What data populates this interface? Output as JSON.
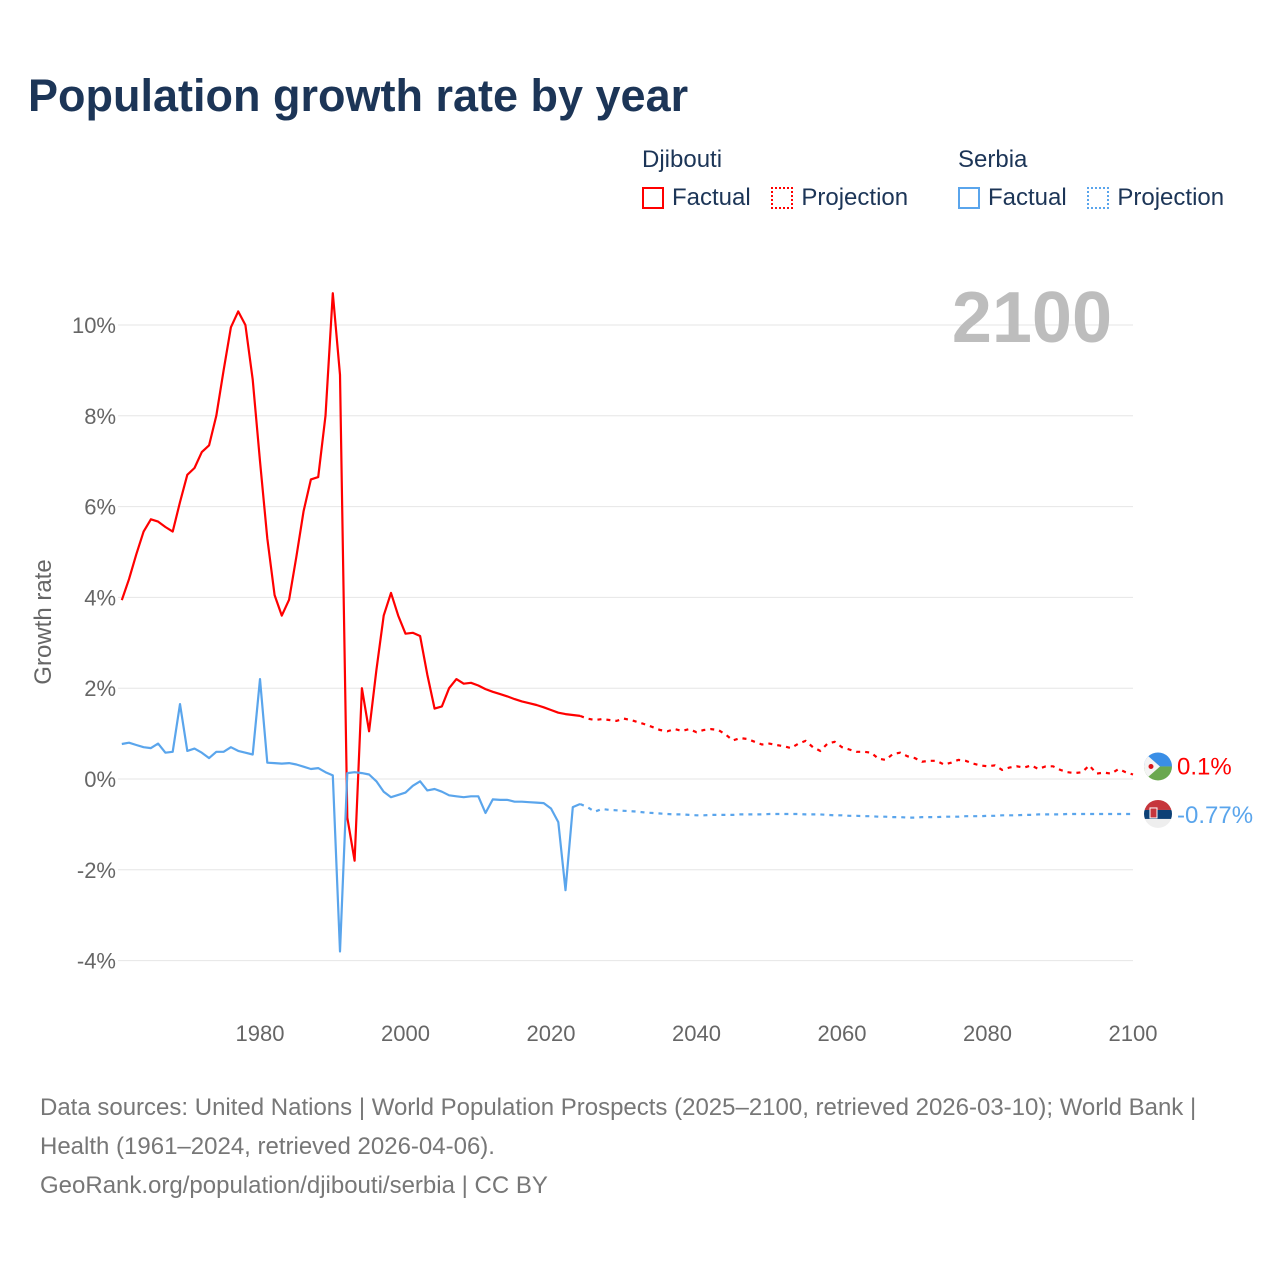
{
  "title": "Population growth rate by year",
  "legend": {
    "groups": [
      {
        "name": "Djibouti",
        "factual": "Factual",
        "projection": "Projection",
        "color": "#ff0000"
      },
      {
        "name": "Serbia",
        "factual": "Factual",
        "projection": "Projection",
        "color": "#5aa5ec"
      }
    ]
  },
  "footer": {
    "sources": "Data sources: United Nations | World Population Prospects (2025–2100, retrieved 2026-03-10); World Bank | Health (1961–2024, retrieved 2026-04-06).",
    "credit": "GeoRank.org/population/djibouti/serbia | CC BY"
  },
  "chart_data": {
    "type": "line",
    "title": "Population growth rate by year",
    "ylabel": "Growth rate",
    "xlabel": "",
    "xlim": [
      1961,
      2100
    ],
    "ylim": [
      -5,
      11
    ],
    "x_ticks": [
      1980,
      2000,
      2020,
      2040,
      2060,
      2080,
      2100
    ],
    "y_ticks": [
      -4,
      -2,
      0,
      2,
      4,
      6,
      8,
      10
    ],
    "y_tick_labels": [
      "-4%",
      "-2%",
      "0%",
      "2%",
      "4%",
      "6%",
      "8%",
      "10%"
    ],
    "grid": true,
    "current_year_label": "2100",
    "series": [
      {
        "name": "Djibouti",
        "color": "#ff0000",
        "end_label": "0.1%",
        "factual_start": 1961,
        "factual": [
          3.94,
          4.4,
          4.95,
          5.45,
          5.72,
          5.67,
          5.55,
          5.45,
          6.1,
          6.7,
          6.85,
          7.2,
          7.35,
          8.0,
          9.0,
          9.95,
          10.3,
          10.0,
          8.8,
          7.0,
          5.3,
          4.05,
          3.6,
          3.95,
          4.9,
          5.9,
          6.6,
          6.65,
          8.0,
          10.7,
          8.9,
          -0.85,
          -1.8,
          2.0,
          1.05,
          2.4,
          3.6,
          4.1,
          3.6,
          3.2,
          3.22,
          3.15,
          2.3,
          1.55,
          1.6,
          2.0,
          2.2,
          2.1,
          2.12,
          2.06,
          1.98,
          1.92,
          1.87,
          1.82,
          1.76,
          1.71,
          1.67,
          1.63,
          1.58,
          1.52,
          1.46,
          1.43,
          1.41,
          1.39
        ],
        "projection_start": 2024,
        "projection": [
          1.39,
          1.33,
          1.3,
          1.32,
          1.3,
          1.28,
          1.33,
          1.3,
          1.25,
          1.2,
          1.14,
          1.08,
          1.05,
          1.1,
          1.06,
          1.1,
          1.03,
          1.08,
          1.1,
          1.08,
          0.98,
          0.85,
          0.9,
          0.88,
          0.82,
          0.76,
          0.78,
          0.75,
          0.72,
          0.68,
          0.78,
          0.84,
          0.7,
          0.62,
          0.78,
          0.82,
          0.7,
          0.65,
          0.6,
          0.6,
          0.58,
          0.45,
          0.42,
          0.55,
          0.58,
          0.5,
          0.46,
          0.38,
          0.4,
          0.4,
          0.32,
          0.36,
          0.42,
          0.4,
          0.34,
          0.3,
          0.28,
          0.3,
          0.2,
          0.25,
          0.28,
          0.25,
          0.3,
          0.22,
          0.28,
          0.28,
          0.2,
          0.15,
          0.13,
          0.15,
          0.3,
          0.12,
          0.14,
          0.12,
          0.22,
          0.15,
          0.1
        ]
      },
      {
        "name": "Serbia",
        "color": "#5aa5ec",
        "end_label": "-0.77%",
        "factual_start": 1961,
        "factual": [
          0.77,
          0.8,
          0.75,
          0.7,
          0.68,
          0.78,
          0.58,
          0.6,
          1.65,
          0.62,
          0.67,
          0.58,
          0.46,
          0.6,
          0.6,
          0.7,
          0.62,
          0.58,
          0.54,
          2.2,
          0.36,
          0.35,
          0.34,
          0.35,
          0.32,
          0.27,
          0.22,
          0.24,
          0.15,
          0.08,
          -3.8,
          0.13,
          0.15,
          0.13,
          0.1,
          -0.05,
          -0.28,
          -0.4,
          -0.35,
          -0.3,
          -0.15,
          -0.05,
          -0.25,
          -0.22,
          -0.28,
          -0.36,
          -0.38,
          -0.4,
          -0.38,
          -0.38,
          -0.75,
          -0.45,
          -0.46,
          -0.46,
          -0.5,
          -0.5,
          -0.51,
          -0.52,
          -0.53,
          -0.65,
          -0.95,
          -2.45,
          -0.62,
          -0.55
        ],
        "projection_start": 2024,
        "projection": [
          -0.55,
          -0.62,
          -0.72,
          -0.66,
          -0.68,
          -0.69,
          -0.7,
          -0.71,
          -0.72,
          -0.74,
          -0.75,
          -0.76,
          -0.77,
          -0.78,
          -0.78,
          -0.79,
          -0.8,
          -0.8,
          -0.79,
          -0.79,
          -0.79,
          -0.79,
          -0.78,
          -0.78,
          -0.78,
          -0.78,
          -0.77,
          -0.77,
          -0.77,
          -0.77,
          -0.77,
          -0.78,
          -0.78,
          -0.78,
          -0.79,
          -0.8,
          -0.8,
          -0.81,
          -0.81,
          -0.82,
          -0.82,
          -0.83,
          -0.83,
          -0.84,
          -0.84,
          -0.85,
          -0.85,
          -0.84,
          -0.84,
          -0.84,
          -0.83,
          -0.83,
          -0.83,
          -0.82,
          -0.82,
          -0.82,
          -0.81,
          -0.81,
          -0.8,
          -0.8,
          -0.8,
          -0.79,
          -0.79,
          -0.78,
          -0.78,
          -0.78,
          -0.78,
          -0.77,
          -0.77,
          -0.77,
          -0.77,
          -0.77,
          -0.77,
          -0.77,
          -0.77,
          -0.77,
          -0.77
        ]
      }
    ]
  }
}
